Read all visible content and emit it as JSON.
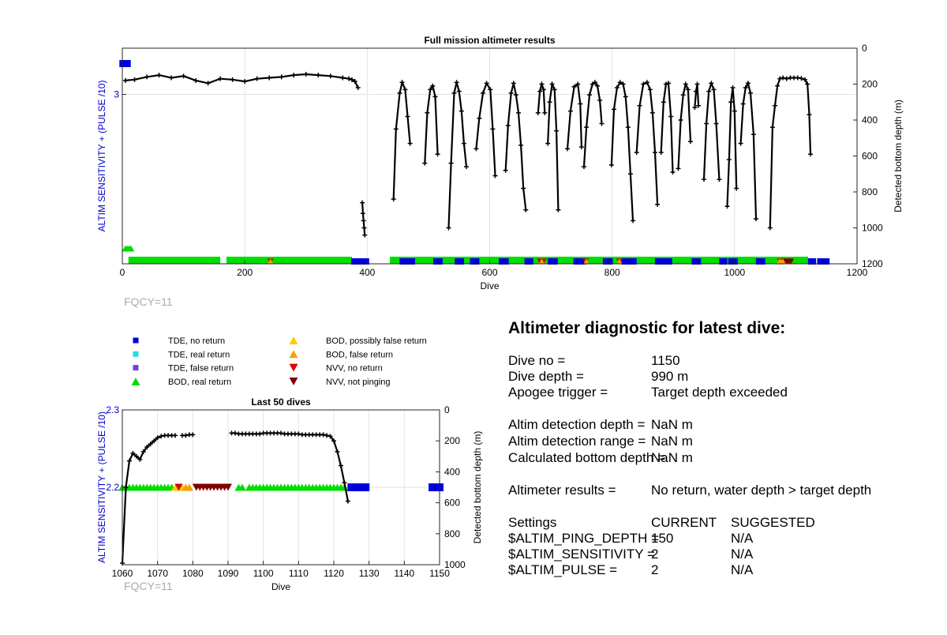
{
  "chart_data": [
    {
      "type": "scatter",
      "title": "Full mission altimeter results",
      "xlabel": "Dive",
      "ylabel_left": "ALTIM SENSITIVITY + (PULSE /10)",
      "ylabel_right": "Detected bottom depth (m)",
      "xlim": [
        0,
        1200
      ],
      "xticks": [
        0,
        200,
        400,
        600,
        800,
        1000,
        1200
      ],
      "ylim_left": [
        1.9,
        3.3
      ],
      "yticks_left": [
        3
      ],
      "ylim_right": [
        0,
        1200
      ],
      "yticks_right": [
        0,
        200,
        400,
        600,
        800,
        1000,
        1200
      ],
      "right_axis_reversed": true,
      "grid": true,
      "footnote": "FQCY=11",
      "settings_series": [
        {
          "name": "TDE, no return",
          "x": [
            1,
            2,
            3,
            4,
            5,
            6,
            7,
            8
          ],
          "y": [
            3.2,
            3.2,
            3.2,
            3.2,
            3.2,
            3.2,
            3.2,
            3.2
          ]
        },
        {
          "name": "BOD, real return",
          "x": [
            5,
            8,
            11,
            14
          ],
          "y": [
            2.0,
            2.0,
            2.0,
            2.0
          ]
        }
      ],
      "depth_line_segments": [
        {
          "x": [
            5,
            20,
            40,
            60,
            80,
            100,
            120,
            140,
            160,
            180,
            200,
            220,
            240,
            260,
            280,
            300,
            320,
            340,
            360,
            370,
            375,
            380,
            385
          ],
          "depth": [
            180,
            175,
            160,
            150,
            165,
            155,
            180,
            195,
            170,
            175,
            185,
            170,
            165,
            160,
            150,
            145,
            150,
            155,
            165,
            170,
            175,
            185,
            220
          ]
        },
        {
          "x": [
            392,
            393,
            394,
            395,
            396
          ],
          "depth": [
            860,
            920,
            960,
            1000,
            1040
          ]
        },
        {
          "x": [
            443,
            447,
            453,
            457,
            462,
            466,
            470
          ],
          "depth": [
            840,
            450,
            250,
            190,
            230,
            380,
            530
          ]
        },
        {
          "x": [
            494,
            498,
            503,
            507,
            511,
            515
          ],
          "depth": [
            640,
            360,
            230,
            210,
            270,
            590
          ]
        },
        {
          "x": [
            533,
            537,
            542,
            546,
            550,
            554,
            558,
            562
          ],
          "depth": [
            1000,
            640,
            250,
            190,
            240,
            350,
            530,
            660
          ]
        },
        {
          "x": [
            578,
            583,
            589,
            595,
            601,
            605,
            609
          ],
          "depth": [
            560,
            390,
            250,
            195,
            230,
            450,
            710
          ]
        },
        {
          "x": [
            626,
            630,
            635,
            639,
            643,
            647,
            651,
            655,
            659
          ],
          "depth": [
            680,
            430,
            250,
            195,
            260,
            360,
            540,
            780,
            900
          ]
        },
        {
          "x": [
            679,
            682,
            685,
            688,
            690
          ],
          "depth": [
            360,
            240,
            200,
            230,
            360
          ]
        },
        {
          "x": [
            695,
            698,
            702,
            706,
            709,
            712
          ],
          "depth": [
            530,
            300,
            200,
            230,
            460,
            900
          ]
        },
        {
          "x": [
            727,
            732,
            738,
            744,
            748,
            750
          ],
          "depth": [
            560,
            350,
            215,
            200,
            310,
            550
          ]
        },
        {
          "x": [
            754,
            758,
            763,
            768,
            772,
            776,
            780,
            783
          ],
          "depth": [
            660,
            440,
            260,
            200,
            190,
            210,
            290,
            420
          ]
        },
        {
          "x": [
            799,
            803,
            808,
            813,
            818,
            822,
            826,
            830,
            834
          ],
          "depth": [
            650,
            340,
            220,
            190,
            200,
            270,
            440,
            700,
            960
          ]
        },
        {
          "x": [
            840,
            845,
            851,
            857,
            862,
            866,
            870,
            874
          ],
          "depth": [
            580,
            320,
            200,
            190,
            230,
            360,
            580,
            870
          ]
        },
        {
          "x": [
            880,
            884,
            888,
            892,
            896,
            899
          ],
          "depth": [
            580,
            300,
            200,
            195,
            380,
            690
          ]
        },
        {
          "x": [
            908,
            912,
            916,
            920,
            924,
            928
          ],
          "depth": [
            670,
            400,
            260,
            200,
            230,
            520
          ]
        },
        {
          "x": [
            935,
            937,
            939,
            941
          ],
          "depth": [
            330,
            240,
            200,
            320
          ]
        },
        {
          "x": [
            950,
            954,
            958,
            962,
            966,
            970,
            975
          ],
          "depth": [
            730,
            420,
            240,
            195,
            230,
            420,
            730
          ]
        },
        {
          "x": [
            988,
            991,
            994,
            997,
            1000,
            1003
          ],
          "depth": [
            880,
            620,
            300,
            220,
            350,
            780
          ]
        },
        {
          "x": [
            1010,
            1014,
            1018,
            1022,
            1026,
            1031,
            1035
          ],
          "depth": [
            530,
            310,
            220,
            195,
            250,
            480,
            950
          ]
        },
        {
          "x": [
            1058,
            1062,
            1066,
            1070,
            1074,
            1079,
            1085,
            1091,
            1097,
            1103,
            1109,
            1115,
            1119,
            1122,
            1124
          ],
          "depth": [
            1000,
            440,
            320,
            210,
            170,
            165,
            170,
            165,
            165,
            165,
            168,
            175,
            200,
            370,
            590
          ]
        }
      ],
      "status_bands": [
        {
          "name": "BOD, real return",
          "x_start": 10,
          "x_end": 160
        },
        {
          "name": "BOD, real return",
          "x_start": 170,
          "x_end": 375
        },
        {
          "name": "BOD, real return",
          "x_start": 437,
          "x_end": 1120
        }
      ],
      "status_points": [
        {
          "name": "TDE, no return",
          "x": [
            379,
            388,
            393,
            398,
            458,
            468,
            473,
            513,
            518,
            548,
            553,
            573,
            578,
            620,
            626,
            662,
            666,
            700,
            706,
            742,
            752,
            790,
            796,
            820,
            828,
            835,
            875,
            880,
            885,
            893,
            935,
            940,
            980,
            983,
            995,
            1000,
            1040,
            1045,
            1125,
            1128,
            1140,
            1145,
            1148,
            1150
          ]
        },
        {
          "name": "NVV, no return",
          "x": [
            242,
            682,
            688,
            757,
            812,
            1074,
            1077
          ]
        },
        {
          "name": "NVV, not pinging",
          "x": [
            1080,
            1083,
            1086,
            1089,
            1092
          ]
        },
        {
          "name": "BOD, false return",
          "x": [
            242,
            685,
            758,
            812,
            1073,
            1076,
            1079
          ]
        }
      ]
    },
    {
      "type": "scatter",
      "title": "Last 50 dives",
      "xlabel": "Dive",
      "ylabel_left": "ALTIM SENSITIVITY + (PULSE /10)",
      "ylabel_right": "Detected bottom depth (m)",
      "xlim": [
        1060,
        1150
      ],
      "xticks": [
        1060,
        1070,
        1080,
        1090,
        1100,
        1110,
        1120,
        1130,
        1140,
        1150
      ],
      "ylim_left": [
        2.1,
        2.3
      ],
      "yticks_left": [
        2.2,
        2.3
      ],
      "ylim_right": [
        0,
        1000
      ],
      "yticks_right": [
        0,
        200,
        400,
        600,
        800,
        1000
      ],
      "right_axis_reversed": true,
      "grid": true,
      "footnote": "FQCY=11",
      "depth_line_segments": [
        {
          "x": [
            1060,
            1061,
            1062,
            1063,
            1064,
            1065,
            1066,
            1067,
            1068,
            1069,
            1070,
            1071,
            1072,
            1073,
            1074,
            1075
          ],
          "depth": [
            990,
            500,
            330,
            280,
            300,
            320,
            270,
            240,
            220,
            200,
            180,
            170,
            165,
            165,
            165,
            165
          ]
        },
        {
          "x": [
            1077,
            1078,
            1079,
            1080
          ],
          "depth": [
            165,
            165,
            160,
            160
          ]
        },
        {
          "x": [
            1091,
            1092,
            1093,
            1094,
            1095,
            1096,
            1097,
            1098,
            1099,
            1100,
            1101,
            1102,
            1103,
            1104,
            1105,
            1106,
            1107,
            1108,
            1109,
            1110,
            1111,
            1112,
            1113,
            1114,
            1115,
            1116,
            1117,
            1118,
            1119,
            1120,
            1121,
            1122,
            1123,
            1124
          ],
          "depth": [
            150,
            150,
            155,
            155,
            155,
            155,
            155,
            155,
            155,
            150,
            150,
            150,
            150,
            150,
            150,
            155,
            155,
            155,
            155,
            155,
            160,
            160,
            160,
            160,
            160,
            160,
            160,
            165,
            170,
            200,
            270,
            360,
            470,
            590
          ]
        }
      ],
      "status_points": [
        {
          "name": "BOD, real return",
          "x": [
            1060,
            1061,
            1062,
            1063,
            1064,
            1065,
            1066,
            1067,
            1068,
            1069,
            1070,
            1071,
            1072,
            1073,
            1074,
            1093,
            1094,
            1096,
            1097,
            1098,
            1099,
            1100,
            1101,
            1102,
            1103,
            1104,
            1105,
            1106,
            1107,
            1108,
            1109,
            1110,
            1111,
            1112,
            1113,
            1114,
            1115,
            1116,
            1117,
            1118,
            1119,
            1120,
            1121,
            1122,
            1123
          ]
        },
        {
          "name": "BOD, possibly false return",
          "x": [
            1075,
            1077
          ]
        },
        {
          "name": "BOD, false return",
          "x": [
            1078,
            1079
          ]
        },
        {
          "name": "NVV, no return",
          "x": [
            1076
          ]
        },
        {
          "name": "NVV, not pinging",
          "x": [
            1081,
            1082,
            1083,
            1084,
            1085,
            1086,
            1087,
            1088,
            1089,
            1090
          ]
        },
        {
          "name": "TDE, no return",
          "x": [
            1125,
            1126,
            1127,
            1128,
            1129,
            1148,
            1149,
            1150
          ]
        }
      ]
    }
  ],
  "legend": [
    {
      "label": "TDE, no return",
      "marker": "square",
      "color": "#0000dd"
    },
    {
      "label": "TDE, real return",
      "marker": "square",
      "color": "#22dddd"
    },
    {
      "label": "TDE, false return",
      "marker": "square",
      "color": "#7a3ed6"
    },
    {
      "label": "BOD, real return",
      "marker": "triangle-up",
      "color": "#00dd00"
    },
    {
      "label": "BOD, possibly false return",
      "marker": "triangle-up",
      "color": "#ffcc00"
    },
    {
      "label": "BOD, false return",
      "marker": "triangle-up",
      "color": "#f5a000"
    },
    {
      "label": "NVV, no return",
      "marker": "triangle-down",
      "color": "#dd0000"
    },
    {
      "label": "NVV, not pinging",
      "marker": "triangle-down",
      "color": "#800000"
    }
  ],
  "colors": {
    "left_axis": "#0000cc",
    "depth_line": "#000000",
    "grid": "#e2e2e2",
    "footnote": "#aaaaaa"
  },
  "diagnostic": {
    "title": "Altimeter diagnostic for latest dive:",
    "dive_no_label": "Dive no =",
    "dive_no": "1150",
    "dive_depth_label": "Dive depth =",
    "dive_depth": "990 m",
    "apogee_label": "Apogee trigger =",
    "apogee": "Target depth exceeded",
    "detect_depth_label": "Altim detection depth =",
    "detect_depth": "NaN m",
    "detect_range_label": "Altim detection range =",
    "detect_range": "NaN m",
    "calc_bottom_label": "Calculated bottom depth =",
    "calc_bottom": "NaN m",
    "results_label": "Altimeter results =",
    "results": "No return, water depth > target depth",
    "settings_header": "Settings",
    "current_header": "CURRENT",
    "suggested_header": "SUGGESTED",
    "settings": [
      {
        "name": "$ALTIM_PING_DEPTH =",
        "current": "150",
        "suggested": "N/A"
      },
      {
        "name": "$ALTIM_SENSITIVITY =",
        "current": "2",
        "suggested": "N/A"
      },
      {
        "name": "$ALTIM_PULSE =",
        "current": "2",
        "suggested": "N/A"
      }
    ]
  }
}
